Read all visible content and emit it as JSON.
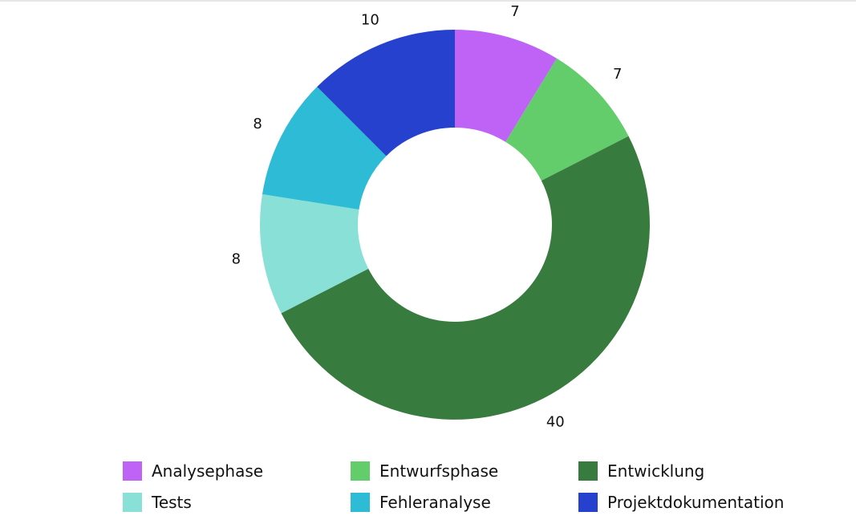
{
  "chart_data": {
    "type": "pie",
    "variant": "donut",
    "categories": [
      "Analysephase",
      "Entwurfsphase",
      "Entwicklung",
      "Tests",
      "Fehleranalyse",
      "Projektdokumentation"
    ],
    "values": [
      7,
      7,
      40,
      8,
      8,
      10
    ],
    "slice_order_clockwise_from_top": [
      "Analysephase",
      "Entwurfsphase",
      "Entwicklung",
      "Tests",
      "Fehleranalyse",
      "Projektdokumentation"
    ],
    "colors": [
      "#bf63f7",
      "#63cc6b",
      "#387b3e",
      "#88e0d6",
      "#2dbbd6",
      "#2741cf"
    ],
    "data_labels": [
      "7",
      "7",
      "40",
      "8",
      "8",
      "10"
    ],
    "legend_position": "bottom",
    "title": "",
    "xlabel": "",
    "ylabel": ""
  },
  "legend": {
    "items": [
      {
        "label": "Analysephase",
        "color": "#bf63f7"
      },
      {
        "label": "Entwurfsphase",
        "color": "#63cc6b"
      },
      {
        "label": "Entwicklung",
        "color": "#387b3e"
      },
      {
        "label": "Tests",
        "color": "#88e0d6"
      },
      {
        "label": "Fehleranalyse",
        "color": "#2dbbd6"
      },
      {
        "label": "Projektdokumentation",
        "color": "#2741cf"
      }
    ]
  }
}
